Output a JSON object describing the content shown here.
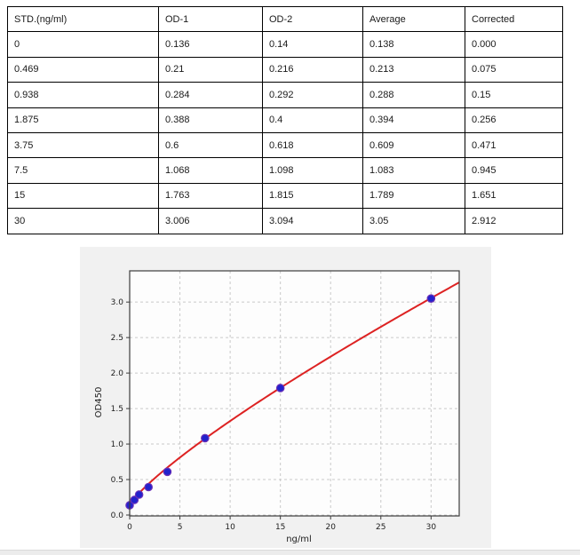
{
  "table": {
    "headers": [
      "STD.(ng/ml)",
      "OD-1",
      "OD-2",
      "Average",
      "Corrected"
    ],
    "rows": [
      [
        "0",
        "0.136",
        "0.14",
        "0.138",
        "0.000"
      ],
      [
        "0.469",
        "0.21",
        "0.216",
        "0.213",
        "0.075"
      ],
      [
        "0.938",
        "0.284",
        "0.292",
        "0.288",
        "0.15"
      ],
      [
        "1.875",
        "0.388",
        "0.4",
        "0.394",
        "0.256"
      ],
      [
        "3.75",
        "0.6",
        "0.618",
        "0.609",
        "0.471"
      ],
      [
        "7.5",
        "1.068",
        "1.098",
        "1.083",
        "0.945"
      ],
      [
        "15",
        "1.763",
        "1.815",
        "1.789",
        "1.651"
      ],
      [
        "30",
        "3.006",
        "3.094",
        "3.05",
        "2.912"
      ]
    ]
  },
  "chart_data": {
    "type": "scatter",
    "title": "",
    "xlabel": "ng/ml",
    "ylabel": "OD450",
    "x": [
      0,
      0.469,
      0.938,
      1.875,
      3.75,
      7.5,
      15,
      30
    ],
    "y": [
      0.138,
      0.213,
      0.288,
      0.394,
      0.609,
      1.083,
      1.789,
      3.05
    ],
    "xlim": [
      0,
      32.8
    ],
    "ylim": [
      0,
      3.44
    ],
    "xticks": [
      0,
      5,
      10,
      15,
      20,
      25,
      30
    ],
    "yticks": [
      0.0,
      0.5,
      1.0,
      1.5,
      2.0,
      2.5,
      3.0
    ],
    "grid": true,
    "legend": "none",
    "fit_curve": {
      "model": "power",
      "formula": "y = c + a*x^b",
      "a": 0.18,
      "b": 0.819,
      "c": 0.138
    },
    "colors": {
      "curve": "#dd2222",
      "marker_fill": "#2222cc",
      "marker_edge": "#6a30b8",
      "grid": "#c9c9c9",
      "plot_bg": "#fdfdfd",
      "panel_bg": "#f1f1f1",
      "spine": "#3c3c3c"
    }
  }
}
